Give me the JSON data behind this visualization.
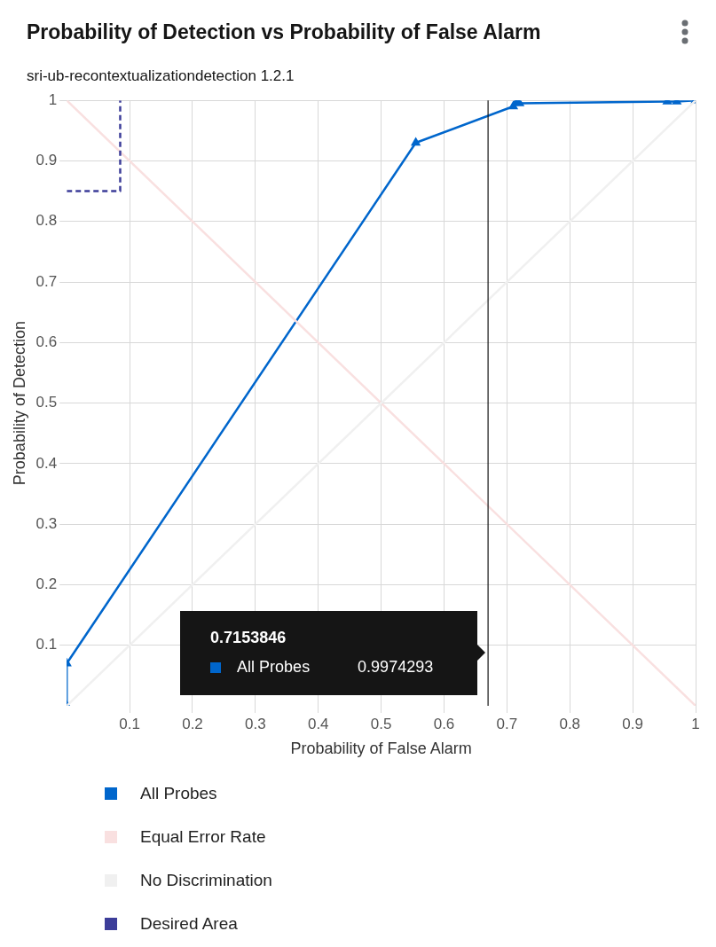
{
  "chart_data": {
    "type": "line",
    "title": "Probability of Detection vs Probability of False Alarm",
    "subtitle": "sri-ub-recontextualizationdetection 1.2.1",
    "xlabel": "Probability of False Alarm",
    "ylabel": "Probability of Detection",
    "xlim": [
      0,
      1
    ],
    "ylim": [
      0,
      1
    ],
    "xticks": [
      0.1,
      0.2,
      0.3,
      0.4,
      0.5,
      0.6,
      0.7,
      0.8,
      0.9,
      1
    ],
    "yticks": [
      0.1,
      0.2,
      0.3,
      0.4,
      0.5,
      0.6,
      0.7,
      0.8,
      0.9,
      1
    ],
    "grid": true,
    "legend": "bottom",
    "series": [
      {
        "name": "All Probes",
        "color": "#0066cc",
        "marker": "triangle",
        "x": [
          0,
          0,
          0.555,
          0.71,
          0.7153846,
          0.72,
          0.955,
          0.97,
          1
        ],
        "values": [
          0,
          0.07,
          0.93,
          0.99,
          0.9974293,
          0.995,
          0.998,
          0.998,
          1
        ]
      },
      {
        "name": "Equal Error Rate",
        "color": "#f9e0e0",
        "marker": "none",
        "x": [
          0,
          1
        ],
        "values": [
          1,
          0
        ]
      },
      {
        "name": "No Discrimination",
        "color": "#f0f0f0",
        "marker": "none",
        "x": [
          0,
          1
        ],
        "values": [
          0,
          1
        ]
      },
      {
        "name": "Desired Area",
        "color": "#3c3d99",
        "marker": "none",
        "line_style": "dashed",
        "x": [
          0,
          0.085,
          0.085
        ],
        "values": [
          0.85,
          0.85,
          1
        ]
      }
    ],
    "ref_lines": [
      {
        "axis": "x",
        "value": 0.67,
        "color": "#151515"
      }
    ],
    "annotations": [
      "0.7153846",
      "All Probes",
      "0.9974293"
    ]
  }
}
